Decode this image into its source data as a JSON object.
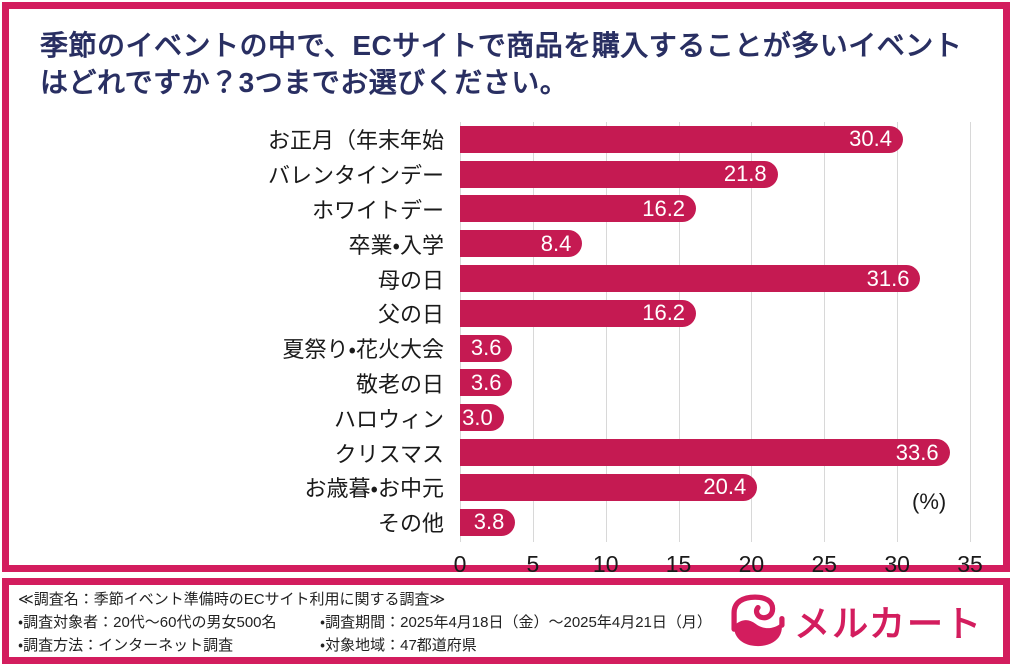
{
  "chart_data": {
    "type": "bar",
    "orientation": "horizontal",
    "title": "季節のイベントの中で、ECサイトで商品を購入することが多いイベントはどれですか？3つまでお選びください。",
    "categories": [
      "お正月（年末年始",
      "バレンタインデー",
      "ホワイトデー",
      "卒業・入学",
      "母の日",
      "父の日",
      "夏祭り・花火大会",
      "敬老の日",
      "ハロウィン",
      "クリスマス",
      "お歳暮・お中元",
      "その他"
    ],
    "values": [
      30.4,
      21.8,
      16.2,
      8.4,
      31.6,
      16.2,
      3.6,
      3.6,
      3.0,
      33.6,
      20.4,
      3.8
    ],
    "x_ticks": [
      "0",
      "5",
      "10",
      "15",
      "20",
      "25",
      "30",
      "35"
    ],
    "xlim": [
      0,
      35
    ],
    "unit_label": "(%)",
    "grid": true,
    "legend": "none"
  },
  "footer": {
    "survey_name": "≪調査名：季節イベント準備時のECサイト利用に関する調査≫",
    "left_items": [
      "・調査対象者：20代〜60代の男女500名",
      "・調査方法：インターネット調査"
    ],
    "right_items": [
      "・調査期間：2025年4月18日（金）〜2025年4月21日（月）",
      "・対象地域：47都道府県"
    ],
    "logo": {
      "text": "メルカート",
      "icon": "mercart-bag-icon"
    }
  },
  "colors": {
    "accent_frame": "#d31d5e",
    "bar": "#c51a52",
    "title_text": "#292f62",
    "gridline": "#d8d8d8",
    "bar_value_text": "#ffffff"
  }
}
